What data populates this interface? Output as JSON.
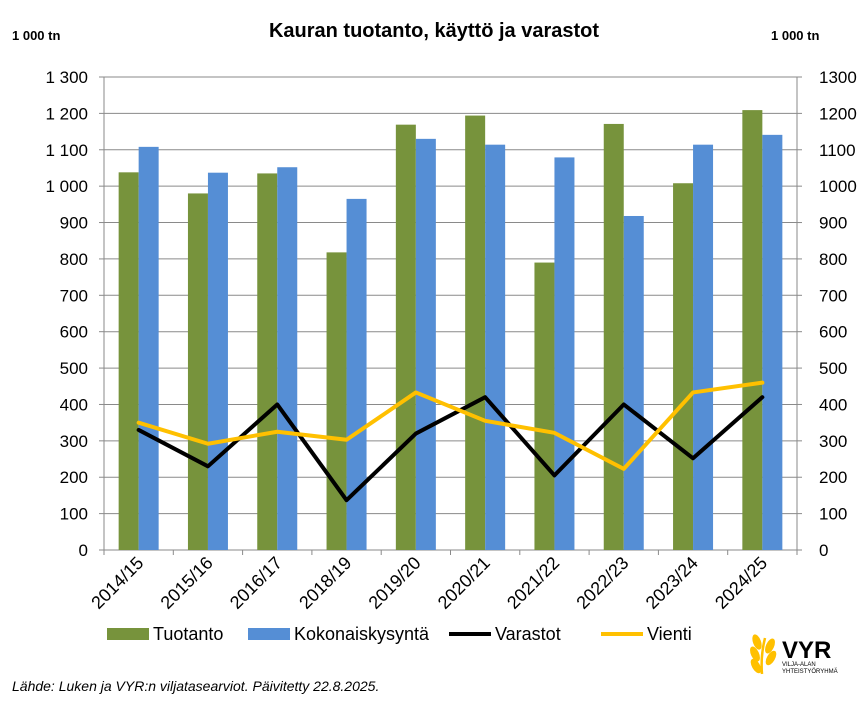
{
  "chart_data": {
    "type": "bar",
    "title": "Kauran tuotanto, käyttö ja varastot",
    "ylabel_left": "1 000 tn",
    "ylabel_right": "1 000 tn",
    "categories": [
      "2014/15",
      "2015/16",
      "2016/17",
      "2018/19",
      "2019/20",
      "2020/21",
      "2021/22",
      "2022/23",
      "2023/24",
      "2024/25"
    ],
    "ylim": [
      0,
      1300
    ],
    "yticks_left": [
      "0",
      "100",
      "200",
      "300",
      "400",
      "500",
      "600",
      "700",
      "800",
      "900",
      "1 000",
      "1 100",
      "1 200",
      "1 300"
    ],
    "yticks_right": [
      "0",
      "100",
      "200",
      "300",
      "400",
      "500",
      "600",
      "700",
      "800",
      "900",
      "1000",
      "1100",
      "1200",
      "1300"
    ],
    "grid": true,
    "legend_position": "bottom",
    "series": [
      {
        "name": "Tuotanto",
        "kind": "bar",
        "color": "#77933c",
        "values": [
          1038,
          980,
          1035,
          818,
          1169,
          1194,
          790,
          1171,
          1008,
          1209
        ]
      },
      {
        "name": "Kokonaiskysyntä",
        "kind": "bar",
        "color": "#558ed5",
        "values": [
          1108,
          1037,
          1052,
          965,
          1130,
          1114,
          1079,
          918,
          1114,
          1141
        ]
      },
      {
        "name": "Varastot",
        "kind": "line",
        "color": "#000000",
        "values": [
          330,
          230,
          400,
          137,
          320,
          420,
          205,
          400,
          252,
          420
        ]
      },
      {
        "name": "Vienti",
        "kind": "line",
        "color": "#ffc000",
        "values": [
          350,
          292,
          325,
          303,
          433,
          355,
          322,
          223,
          433,
          460
        ]
      }
    ]
  },
  "source": "Lähde: Luken ja VYR:n viljatasearviot. Päivitetty 22.8.2025.",
  "logo": {
    "name": "VYR",
    "line1": "VILJA-ALAN",
    "line2": "YHTEISTYÖRYHMÄ",
    "color": "#ffc000"
  }
}
